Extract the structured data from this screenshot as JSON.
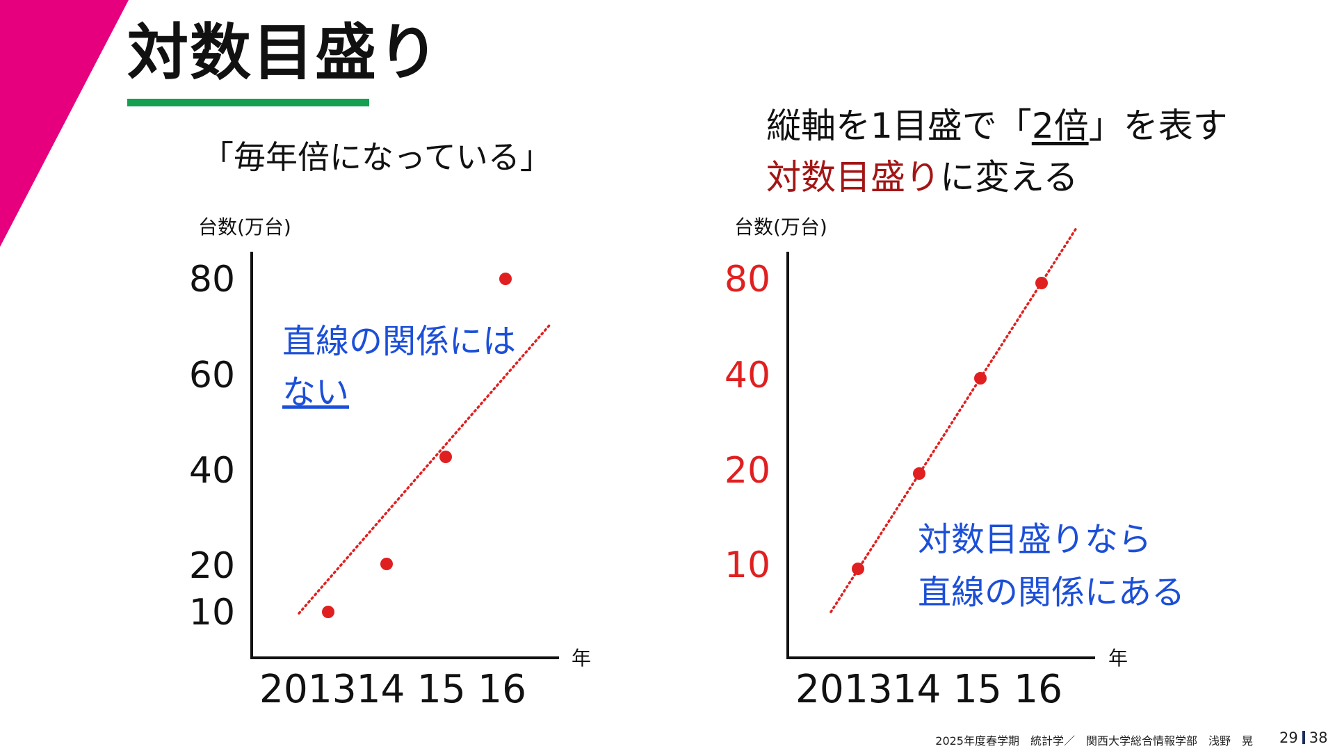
{
  "slide": {
    "title": "対数目盛り",
    "left_quote": "「毎年倍になっている」",
    "right_heading": {
      "line1_a": "縦軸を1目盛で「",
      "line1_u": "2倍",
      "line1_b": "」を表す",
      "line2_red": "対数目盛り",
      "line2_rest": "に変える"
    },
    "footer": "2025年度春学期　統計学／　関西大学総合情報学部　浅野　晃",
    "page_current": "29",
    "page_total": "38",
    "colors": {
      "accent": "#e6007e",
      "underline": "#14a050",
      "data": "#e02020",
      "annotation": "#1c4fd8",
      "dark_red": "#a31515"
    }
  },
  "chart_data": [
    {
      "type": "scatter",
      "scale": "linear",
      "y_axis_title": "台数(万台)",
      "x_axis_title": "年",
      "x_ticks": [
        "2013",
        "14",
        "15",
        "16"
      ],
      "x_tick_text": "201314 15 16",
      "y_ticks": [
        "80",
        "60",
        "40",
        "20",
        "10"
      ],
      "x": [
        2013,
        2014,
        2015,
        2016
      ],
      "values": [
        10,
        20,
        40,
        80
      ],
      "trendline": "dotted",
      "annotation": [
        "直線の関係には",
        "ない"
      ]
    },
    {
      "type": "scatter",
      "scale": "log2",
      "y_axis_title": "台数(万台)",
      "x_axis_title": "年",
      "x_ticks": [
        "2013",
        "14",
        "15",
        "16"
      ],
      "x_tick_text": "201314 15 16",
      "y_ticks": [
        "80",
        "40",
        "20",
        "10"
      ],
      "x": [
        2013,
        2014,
        2015,
        2016
      ],
      "values": [
        10,
        20,
        40,
        80
      ],
      "trendline": "dotted",
      "annotation": [
        "対数目盛りなら",
        "直線の関係にある"
      ]
    }
  ]
}
